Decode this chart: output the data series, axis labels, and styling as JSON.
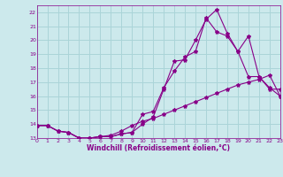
{
  "background_color": "#cce9ec",
  "grid_color": "#aad4d8",
  "line_color": "#880088",
  "marker": "*",
  "marker_size": 3,
  "xlim": [
    0,
    23
  ],
  "ylim": [
    13,
    22.5
  ],
  "xticks": [
    0,
    1,
    2,
    3,
    4,
    5,
    6,
    7,
    8,
    9,
    10,
    11,
    12,
    13,
    14,
    15,
    16,
    17,
    18,
    19,
    20,
    21,
    22,
    23
  ],
  "yticks": [
    13,
    14,
    15,
    16,
    17,
    18,
    19,
    20,
    21,
    22
  ],
  "xlabel": "Windchill (Refroidissement éolien,°C)",
  "lines": [
    {
      "x": [
        0,
        1,
        2,
        3,
        4,
        5,
        6,
        7,
        8,
        9,
        10,
        11,
        12,
        13,
        14,
        15,
        16,
        17,
        18,
        19,
        20,
        21,
        22,
        23
      ],
      "y": [
        13.9,
        13.9,
        13.5,
        13.4,
        13.0,
        13.0,
        13.1,
        13.1,
        13.3,
        13.4,
        14.0,
        14.5,
        16.5,
        18.5,
        18.6,
        20.0,
        21.5,
        22.2,
        20.5,
        19.2,
        20.3,
        17.4,
        16.5,
        16.5
      ]
    },
    {
      "x": [
        0,
        1,
        2,
        3,
        4,
        5,
        6,
        7,
        8,
        9,
        10,
        11,
        12,
        13,
        14,
        15,
        16,
        17,
        18,
        19,
        20,
        21,
        22,
        23
      ],
      "y": [
        13.9,
        13.9,
        13.5,
        13.4,
        13.0,
        13.0,
        13.1,
        13.1,
        13.3,
        13.4,
        14.7,
        14.9,
        16.6,
        17.8,
        18.8,
        19.2,
        21.6,
        20.6,
        20.3,
        19.2,
        17.4,
        17.4,
        16.6,
        16.0
      ]
    },
    {
      "x": [
        0,
        1,
        2,
        3,
        4,
        5,
        6,
        7,
        8,
        9,
        10,
        11,
        12,
        13,
        14,
        15,
        16,
        17,
        18,
        19,
        20,
        21,
        22,
        23
      ],
      "y": [
        13.9,
        13.9,
        13.5,
        13.4,
        13.0,
        13.0,
        13.1,
        13.2,
        13.5,
        13.9,
        14.2,
        14.4,
        14.7,
        15.0,
        15.3,
        15.6,
        15.9,
        16.2,
        16.5,
        16.8,
        17.0,
        17.2,
        17.5,
        16.0
      ]
    }
  ]
}
